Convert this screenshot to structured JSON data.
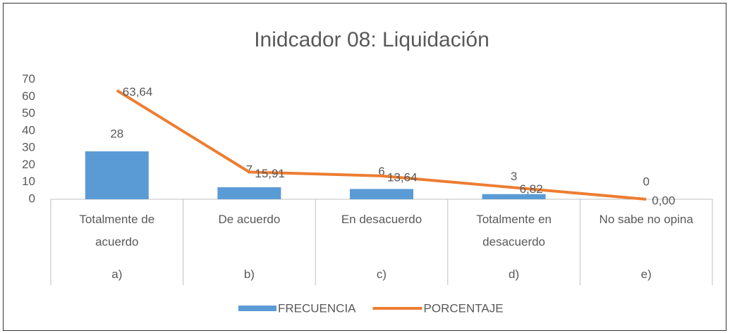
{
  "chart_data": {
    "type": "combo",
    "title": "Inidcador 08: Liquidación",
    "categories": [
      "Totalmente de acuerdo",
      "De acuerdo",
      "En desacuerdo",
      "Totalmente en desacuerdo",
      "No sabe no opina"
    ],
    "groups": [
      "a)",
      "b)",
      "c)",
      "d)",
      "e)"
    ],
    "series": [
      {
        "name": "FRECUENCIA",
        "type": "bar",
        "color": "#5b9bd5",
        "values": [
          28,
          7,
          6,
          3,
          0
        ]
      },
      {
        "name": "PORCENTAJE",
        "type": "line",
        "color": "#ed7d31",
        "values": [
          63.64,
          15.91,
          13.64,
          6.82,
          0
        ],
        "value_labels": [
          "63,64",
          "15,91",
          "13,64",
          "6,82",
          "0,00"
        ]
      }
    ],
    "ylim": [
      0,
      70
    ],
    "yticks": [
      0,
      10,
      20,
      30,
      40,
      50,
      60,
      70
    ],
    "grid": false,
    "legend": "bottom"
  }
}
